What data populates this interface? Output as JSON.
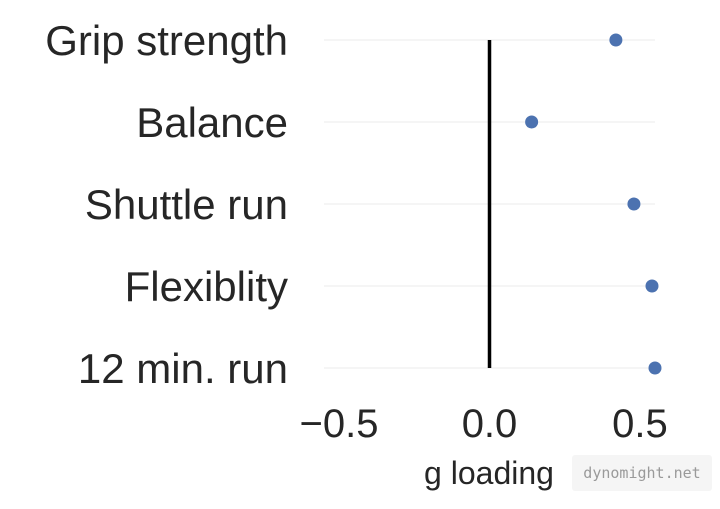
{
  "chart_data": {
    "type": "scatter",
    "categories": [
      "Grip strength",
      "Balance",
      "Shuttle run",
      "Flexiblity",
      "12 min. run"
    ],
    "values": [
      0.42,
      0.14,
      0.48,
      0.54,
      0.55
    ],
    "xlabel": "g loading",
    "ylabel": "",
    "xlim": [
      -0.55,
      0.55
    ],
    "xticks": [
      -0.5,
      0.0,
      0.5
    ],
    "xtick_labels": [
      "−0.5",
      "0.0",
      "0.5"
    ],
    "reference_line_x": 0.0,
    "grid": "horizontal",
    "colors": {
      "point": "#4c72b0",
      "reference_line": "#000000",
      "grid": "#ebebeb"
    }
  },
  "watermark": "dynomight.net"
}
